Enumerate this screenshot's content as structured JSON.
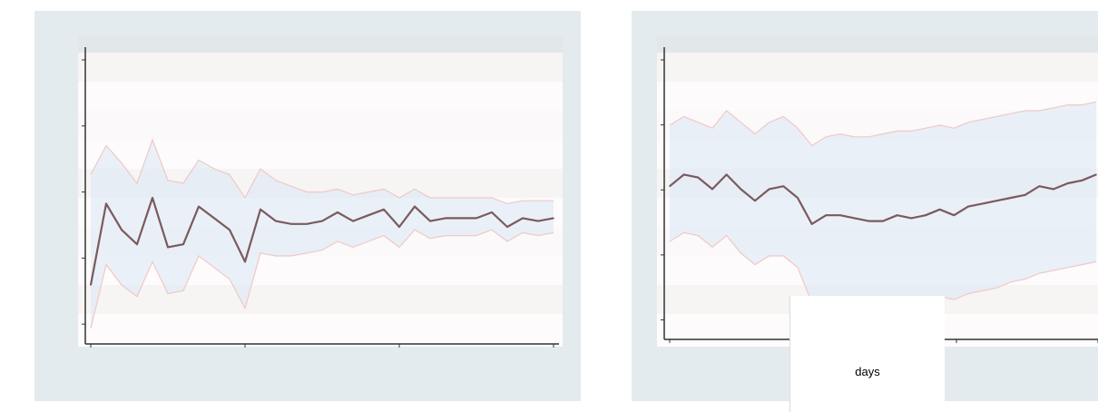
{
  "colors": {
    "panel_bg": "#e4ebee",
    "plot_bg": "#fdfbfb",
    "plot_header": "#e2e7ea",
    "band_fill": "#dbe8f4",
    "band_line": "#f0c8c8",
    "main_line": "#7a5a5e",
    "axis": "#333333"
  },
  "chart_data": [
    {
      "type": "line",
      "y_range": [
        0,
        1
      ],
      "x": [
        0,
        1,
        2,
        3,
        4,
        5,
        6,
        7,
        8,
        9,
        10,
        11,
        12,
        13,
        14,
        15,
        16,
        17,
        18,
        19,
        20,
        21,
        22,
        23,
        24,
        25,
        26,
        27,
        28,
        29,
        30
      ],
      "series": [
        {
          "role": "estimate",
          "values": [
            0.2,
            0.48,
            0.39,
            0.34,
            0.5,
            0.33,
            0.34,
            0.47,
            0.43,
            0.39,
            0.28,
            0.46,
            0.42,
            0.41,
            0.41,
            0.42,
            0.45,
            0.42,
            0.44,
            0.46,
            0.4,
            0.47,
            0.42,
            0.43,
            0.43,
            0.43,
            0.45,
            0.4,
            0.43,
            0.42,
            0.43
          ]
        },
        {
          "role": "upper-bound",
          "values": [
            0.58,
            0.68,
            0.62,
            0.55,
            0.7,
            0.56,
            0.55,
            0.63,
            0.6,
            0.58,
            0.5,
            0.6,
            0.56,
            0.54,
            0.52,
            0.52,
            0.53,
            0.51,
            0.52,
            0.53,
            0.5,
            0.53,
            0.5,
            0.5,
            0.5,
            0.5,
            0.5,
            0.48,
            0.49,
            0.49,
            0.49
          ]
        },
        {
          "role": "lower-bound",
          "values": [
            0.05,
            0.27,
            0.2,
            0.16,
            0.28,
            0.17,
            0.18,
            0.3,
            0.26,
            0.22,
            0.12,
            0.31,
            0.3,
            0.3,
            0.31,
            0.32,
            0.35,
            0.33,
            0.35,
            0.37,
            0.33,
            0.39,
            0.36,
            0.37,
            0.37,
            0.37,
            0.39,
            0.35,
            0.38,
            0.37,
            0.38
          ]
        }
      ]
    },
    {
      "type": "line",
      "y_range": [
        0,
        1
      ],
      "xlabel": "days",
      "x": [
        0,
        1,
        2,
        3,
        4,
        5,
        6,
        7,
        8,
        9,
        10,
        11,
        12,
        13,
        14,
        15,
        16,
        17,
        18,
        19,
        20,
        21,
        22,
        23,
        24,
        25,
        26,
        27,
        28,
        29,
        30
      ],
      "series": [
        {
          "role": "estimate",
          "values": [
            0.54,
            0.58,
            0.57,
            0.53,
            0.58,
            0.53,
            0.49,
            0.53,
            0.54,
            0.5,
            0.41,
            0.44,
            0.44,
            0.43,
            0.42,
            0.42,
            0.44,
            0.43,
            0.44,
            0.46,
            0.44,
            0.47,
            0.48,
            0.49,
            0.5,
            0.51,
            0.54,
            0.53,
            0.55,
            0.56,
            0.58
          ]
        },
        {
          "role": "upper-bound",
          "values": [
            0.75,
            0.78,
            0.76,
            0.74,
            0.8,
            0.76,
            0.72,
            0.76,
            0.78,
            0.74,
            0.68,
            0.71,
            0.72,
            0.71,
            0.71,
            0.72,
            0.73,
            0.73,
            0.74,
            0.75,
            0.74,
            0.76,
            0.77,
            0.78,
            0.79,
            0.8,
            0.8,
            0.81,
            0.82,
            0.82,
            0.83
          ]
        },
        {
          "role": "lower-bound",
          "values": [
            0.35,
            0.38,
            0.37,
            0.33,
            0.37,
            0.31,
            0.27,
            0.3,
            0.3,
            0.26,
            0.14,
            0.16,
            0.15,
            0.14,
            0.13,
            0.13,
            0.14,
            0.14,
            0.15,
            0.16,
            0.15,
            0.17,
            0.18,
            0.19,
            0.21,
            0.22,
            0.24,
            0.25,
            0.26,
            0.27,
            0.28
          ]
        }
      ]
    }
  ]
}
